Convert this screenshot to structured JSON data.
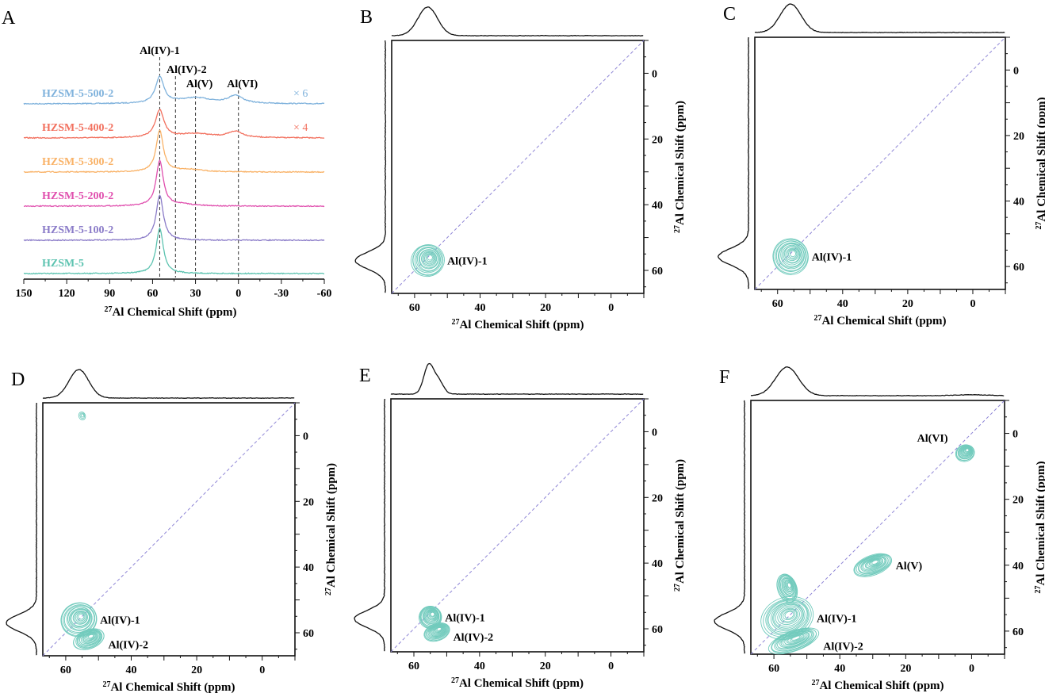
{
  "chart_data": [
    {
      "panel": "A",
      "type": "line",
      "xlabel": {
        "sup": "27",
        "text": "Al Chemical Shift (ppm)"
      },
      "xlim": [
        150,
        -60
      ],
      "xticks": [
        "150",
        "120",
        "90",
        "60",
        "30",
        "0",
        "-30",
        "-60"
      ],
      "reference_lines": [
        {
          "ppm": 55,
          "label": "Al(IV)-1"
        },
        {
          "ppm": 44,
          "label": "Al(IV)-2"
        },
        {
          "ppm": 30,
          "label": "Al(V)"
        },
        {
          "ppm": 0,
          "label": "Al(VI)"
        }
      ],
      "series": [
        {
          "name": "HZSM-5-500-2",
          "color": "#7fb2dc",
          "scale": "× 6",
          "peaks": [
            [
              55,
              1.0,
              3.5
            ],
            [
              30,
              0.22,
              14
            ],
            [
              2,
              0.3,
              6
            ]
          ]
        },
        {
          "name": "HZSM-5-400-2",
          "color": "#f2705e",
          "scale": "× 4",
          "peaks": [
            [
              55,
              1.0,
              3.5
            ],
            [
              30,
              0.15,
              14
            ],
            [
              2,
              0.22,
              6
            ]
          ]
        },
        {
          "name": "HZSM-5-300-2",
          "color": "#f9b267",
          "scale": "",
          "peaks": [
            [
              55,
              1.0,
              3
            ],
            [
              35,
              0.06,
              12
            ]
          ]
        },
        {
          "name": "HZSM-5-200-2",
          "color": "#e04fae",
          "scale": "",
          "peaks": [
            [
              55,
              1.0,
              3
            ],
            [
              40,
              0.04,
              10
            ]
          ]
        },
        {
          "name": "HZSM-5-100-2",
          "color": "#8a7bc8",
          "scale": "",
          "peaks": [
            [
              55,
              1.0,
              3
            ]
          ]
        },
        {
          "name": "HZSM-5",
          "color": "#5cc3b0",
          "scale": "",
          "peaks": [
            [
              55,
              1.0,
              3
            ]
          ]
        }
      ]
    },
    {
      "panel": "B",
      "type": "contour",
      "peaks": [
        {
          "label": "Al(IV)-1",
          "f2": 56,
          "f1": 57,
          "w2": 5,
          "w1": 5
        }
      ],
      "projection": [
        [
          56,
          1,
          3
        ]
      ]
    },
    {
      "panel": "C",
      "type": "contour",
      "peaks": [
        {
          "label": "Al(IV)-1",
          "f2": 56,
          "f1": 57,
          "w2": 5.5,
          "w1": 5.5
        }
      ],
      "projection": [
        [
          56,
          1,
          3.2
        ]
      ]
    },
    {
      "panel": "D",
      "type": "contour",
      "peaks": [
        {
          "label": "Al(IV)-1",
          "f2": 56,
          "f1": 56,
          "w2": 5.5,
          "w1": 5
        },
        {
          "label": "Al(IV)-2",
          "f2": 53,
          "f1": 62,
          "w2": 5,
          "w1": 3
        },
        {
          "label": "",
          "f2": 55,
          "f1": -6,
          "w2": 1,
          "w1": 1.2
        }
      ],
      "projection": [
        [
          56,
          1,
          3
        ]
      ]
    },
    {
      "panel": "E",
      "type": "contour",
      "peaks": [
        {
          "label": "Al(IV)-1",
          "f2": 55,
          "f1": 56.5,
          "w2": 3.5,
          "w1": 3.5
        },
        {
          "label": "Al(IV)-2",
          "f2": 53,
          "f1": 61,
          "w2": 4,
          "w1": 2.5
        }
      ],
      "projection": [
        [
          55.5,
          1,
          1.5
        ],
        [
          52.5,
          0.45,
          1.5
        ]
      ]
    },
    {
      "panel": "F",
      "type": "contour",
      "peaks": [
        {
          "label": "Al(IV)-1",
          "f2": 56,
          "f1": 56,
          "w2": 8,
          "w1": 6
        },
        {
          "label": "Al(IV)-2",
          "f2": 54,
          "f1": 63,
          "w2": 8,
          "w1": 3
        },
        {
          "label": "",
          "f2": 56,
          "f1": 47,
          "w2": 3,
          "w1": 4.5
        },
        {
          "label": "Al(V)",
          "f2": 30,
          "f1": 40,
          "w2": 6,
          "w1": 3
        },
        {
          "label": "Al(VI)",
          "f2": 2,
          "f1": 6,
          "w2": 3,
          "w1": 2.5
        }
      ],
      "projection": [
        [
          56,
          1,
          3.5
        ],
        [
          0,
          0.03,
          5
        ]
      ]
    }
  ],
  "axes2d": {
    "xlim": [
      67,
      -10
    ],
    "ylim": [
      -10,
      67
    ],
    "ticks": [
      "60",
      "40",
      "20",
      "0"
    ],
    "yticks": [
      "0",
      "20",
      "40",
      "60"
    ],
    "label": {
      "sup": "27",
      "text": "Al Chemical Shift (ppm)"
    }
  },
  "colors": {
    "contour": "#72cbbd",
    "diagonal": "#8f86d6",
    "axis": "#111111"
  }
}
